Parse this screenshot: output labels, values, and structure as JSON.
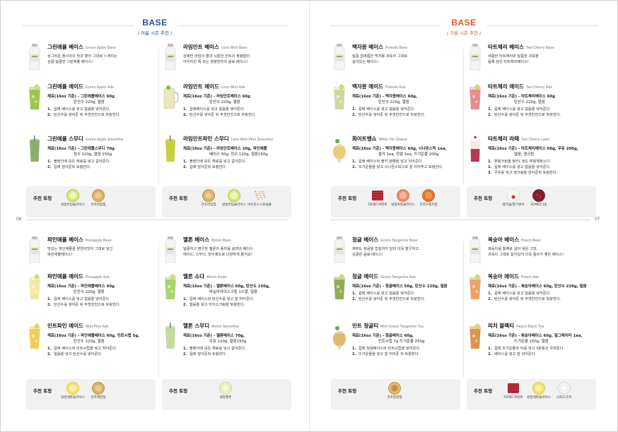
{
  "headers": {
    "left": {
      "title": "BASE",
      "subtitle": "/ 여름 시즌 추천 /"
    },
    "right": {
      "title": "BASE",
      "subtitle": "/ 가을 시즌 추천 /"
    }
  },
  "page_numbers": {
    "left": "06",
    "right": "07"
  },
  "quadrants": [
    {
      "columns": [
        {
          "items": [
            {
              "name": "그린애플 베이스",
              "en": "Green Apple Base",
              "desc": [
                "싱그러운 청사과의 맛과 향이 그대로 느껴지는",
                "상큼 달콤한 그린애플 베이스!"
              ],
              "thumb": "bottle"
            },
            {
              "name": "그린애플 에이드",
              "en": "Green Apple Ade",
              "mat": [
                "재료(16oz 기준) - 그린애플베이스 60g",
                "탄산수 220g, 얼음"
              ],
              "steps": [
                "컵에 베이스를 넣고 얼음을 넣어준다.",
                "탄산수를 넣어준 뒤 주젓한잔으로 트렁한다."
              ],
              "thumb": "ade",
              "color": "#8fc23a"
            },
            {
              "name": "그린애플 스무디",
              "en": "Green Apple Smoothie",
              "mat": [
                "재료(16oz 기준) - 그린애플스무디 70g",
                "정수 120g, 얼음 150g"
              ],
              "steps": [
                "블렌더에 모든 재료를 넣고 갈아준다.",
                "컵에 담아준뒤 토핑한다."
              ],
              "thumb": "smoothie",
              "color": "#8cae6b"
            }
          ]
        },
        {
          "items": [
            {
              "name": "라임민트 베이스",
              "en": "Lime Mint Base",
              "desc": [
                "상쾌한 라임의 향과 시원한 민트의 청량함이",
                "어우러진 톡 쏘는 청량한맛의 음료 베이스!"
              ],
              "thumb": "bottle"
            },
            {
              "name": "라임민트 에이드",
              "en": "Lime Mint Ade",
              "mat": [
                "재료(16oz 기준) - 라임민트베이스 60g",
                "탄산수 220g, 얼음"
              ],
              "steps": [
                "컵에베이스를 넣고 얼음을 넣어준다.",
                "탄산수를 넣어준 뒤 주젓한잔으로 트렁한다."
              ],
              "thumb": "mug",
              "color": "#e9e6c0"
            },
            {
              "name": "라임민트파인 스무디",
              "en": "Lime Mint Pine Smoothie",
              "mat": [
                "재료(16oz 기준) - 라임민트베이스 20g, 파인애플",
                "베이스 50g, 정수 120g, 얼음150g"
              ],
              "steps": [
                "블렌더에 모든 재료를 넣고 갈아준다.",
                "컵에 담아준뒤 토핑한다."
              ],
              "thumb": "smoothie",
              "color": "#c7cf3f"
            }
          ]
        }
      ],
      "toppings": [
        {
          "label": "추천 토핑",
          "items": [
            {
              "name": "냉동라임슬라이스",
              "icon": "lime-slice"
            },
            {
              "name": "건조라임칩",
              "icon": "dried-chip"
            }
          ]
        },
        {
          "label": "추천 토핑",
          "items": [
            {
              "name": "건조라임칩",
              "icon": "dried-chip"
            },
            {
              "name": "냉동라임슬라이스",
              "icon": "lime-slice"
            },
            {
              "name": "바디믹스스프링클",
              "icon": "sprinkles"
            }
          ]
        }
      ]
    },
    {
      "columns": [
        {
          "items": [
            {
              "name": "백자몽 베이스",
              "en": "Pomelo Base",
              "desc": [
                "달콤 쌉싸름한 백자몽 과육이 그대로",
                "살아있는 베이스!"
              ],
              "thumb": "bottle"
            },
            {
              "name": "백자몽 에이드",
              "en": "Pomelo Ade",
              "mat": [
                "재료(16oz 기준) - 백자몽베이스 60g,",
                "탄산수 220g, 얼음"
              ],
              "steps": [
                "컵에 베이스를 넣고 얼음을 넣어준다.",
                "탄산수를 넣어준 뒤 주젓한잔으로 트렁한다."
              ],
              "thumb": "ade",
              "color": "#c9d49a"
            },
            {
              "name": "화이트뱅쇼",
              "en": "White Vin Chaud",
              "mat": [
                "재료(16oz 기준) - 백자몽베이스 60g, 시나몬스틱 1ea,",
                "팔각 1ea, 정향 1ea, 뜨거운물 200g"
              ],
              "steps": [
                "컵에 베이스와 팔각,정향을 넣고 저어준다.",
                "뜨거운물을 넣고 시나몬스틱으로 잘 저어주고 토핑한다."
              ],
              "thumb": "hot",
              "color": "#e6c76a"
            }
          ]
        },
        {
          "items": [
            {
              "name": "타트체리 베이스",
              "en": "Tart Cherry Base",
              "desc": [
                "새콤한 타트체리와 달콤한 과육을",
                "듬뿍 담은 타트체리베이스!"
              ],
              "thumb": "bottle"
            },
            {
              "name": "타트체리 에이드",
              "en": "Tart Cherry Ade",
              "mat": [
                "재료(16oz 기준) - 타트체리베이스 60g",
                "탄산수 220g, 얼음"
              ],
              "steps": [
                "컵에 베이스를 넣고 얼음을 넣어준다.",
                "탄산수를 넣어준 뒤 주젓한잔으로 트렁한다."
              ],
              "thumb": "ade",
              "color": "#e0837f"
            },
            {
              "name": "타트체리 라떼",
              "en": "Tart Cherry Latte",
              "mat": [
                "재료(16oz 기준) - 타트체리베이스 60g, 우유 200g,",
                "얼음, 생크림"
              ],
              "steps": [
                "휘핑크림을 80% 정도 휘핑해놓는다.",
                "컵에 베이스를 넣고 얼음을 넣어준다.",
                "우유를 넣고 생크림을 얹어준뒤 토핑한다."
              ],
              "thumb": "latte",
              "color": "#b23a55"
            }
          ]
        }
      ],
      "toppings": [
        {
          "label": "추천 토핑",
          "items": [
            {
              "name": "FD레드커런트",
              "icon": "red-cube"
            },
            {
              "name": "냉동자몽슬라이스",
              "icon": "grapefruit"
            },
            {
              "name": "건조오렌지칩",
              "icon": "orange-chip"
            }
          ]
        },
        {
          "label": "추천 토핑",
          "items": [
            {
              "name": "생크림/딸기큐브",
              "icon": "cream"
            },
            {
              "name": "FD체리그릿",
              "icon": "cherry-grit"
            }
          ]
        }
      ]
    },
    {
      "columns": [
        {
          "items": [
            {
              "name": "파인애플 베이스",
              "en": "Pineapple Base",
              "desc": [
                "맛있는 파인애플을 본연의맛이 그대로 담긴",
                "파인애플베이스!"
              ],
              "thumb": "bottle"
            },
            {
              "name": "파인애플 에이드",
              "en": "Pineapple Ade",
              "mat": [
                "재료(16oz 기준) - 파인애플베이스 60g",
                "탄산수 220g, 얼음"
              ],
              "steps": [
                "컵에 베이스를 넣고 얼음을 넣어준다.",
                "탄산수를 넣어준 뒤 주젓한잔으로 트렁한다."
              ],
              "thumb": "ade",
              "color": "#eee79a"
            },
            {
              "name": "민트파인 에이드",
              "en": "Mint Pine Ade",
              "mat": [
                "재료(16oz 기준) - 파인애플베이스 60g, 민트시럽 5g,",
                "탄산수 220g, 얼음"
              ],
              "steps": [
                "컵에 베이스와 민트시럽을 넣고 저어준다.",
                "얼음을 넣고 탄산수를 넣어준다."
              ],
              "thumb": "ade",
              "color": "#f0c94a"
            }
          ]
        },
        {
          "items": [
            {
              "name": "멜론 베이스",
              "en": "Melon Base",
              "desc": [
                "달콤하고 향긋한 멜론의 풍미를 살려낸 베이스",
                "에이드, 스무디, 빙수제조로 다양하게 즐겨요!"
              ],
              "thumb": "bottle"
            },
            {
              "name": "멜론 소다",
              "en": "Melon Soda",
              "mat": [
                "재료(16oz 기준) - 멜론베이스 60g, 탄산수 150g,",
                "바닐라아이스크림 1스쿱, 얼음"
              ],
              "steps": [
                "컵에 베이스와 탄산수를 넣고 잘 저어준다.",
                "얼음을 넣고 아이스크림을 토핑한다."
              ],
              "thumb": "ade",
              "color": "#9ed25b"
            },
            {
              "name": "멜론 스무디",
              "en": "Melon Smoothie",
              "mat": [
                "재료(16oz 기준) - 멜론베이스 70g,",
                "우유 120g, 얼음150g"
              ],
              "steps": [
                "블렌더에 모든 재료를 넣고 갈아준다.",
                "컵에 담아준뒤 토핑한다."
              ],
              "thumb": "smoothie",
              "color": "#c6d9a0"
            }
          ]
        }
      ],
      "toppings": [
        {
          "label": "추천 토핑",
          "items": [
            {
              "name": "냉동레몬슬라이스",
              "icon": "lemon-slice"
            },
            {
              "name": "건조레몬칩",
              "icon": "dried-chip"
            }
          ]
        },
        {
          "label": "추천 토핑",
          "items": [
            {
              "name": "냉동멜론",
              "icon": "melon"
            }
          ]
        }
      ]
    },
    {
      "columns": [
        {
          "items": [
            {
              "name": "청귤 베이스",
              "en": "Green Tangerine Base",
              "desc": [
                "제주도 청귤을 껍질까지 담아 더욱 향긋하고",
                "상큼한 음료 베이스!"
              ],
              "thumb": "bottle"
            },
            {
              "name": "청귤 에이드",
              "en": "Green Tangerine Ade",
              "mat": [
                "재료(16oz 기준) - 청귤베이스 50g, 탄산수 220g, 얼음"
              ],
              "steps": [
                "컵에 베이스를 넣고 얼음을 넣어준다.",
                "탄산수를 넣어준 뒤 주젓한잔으로 트렁한다."
              ],
              "thumb": "ade",
              "color": "#8aa24a"
            },
            {
              "name": "민트 청귤티",
              "en": "Mint Green Tangerine Tea",
              "mat": [
                "재료(16oz 기준) - 청귤베이스 60g,",
                "민트시럽 7g 뜨거운물 250g"
              ],
              "steps": [
                "컵에 청귤베이스와 민트시럽을 넣어준다.",
                "뜨거운물을 넣고 잘 저어준 뒤 토핑한다."
              ],
              "thumb": "hot",
              "color": "#d9b25a"
            }
          ]
        },
        {
          "items": [
            {
              "name": "복숭아 베이스",
              "en": "Peach Base",
              "desc": [
                "복숭아를 통째로 갈아 넣은 그맛,",
                "과육이 그대로 살아있어 더욱 풍미가 좋은 베이스!"
              ],
              "thumb": "bottle"
            },
            {
              "name": "복숭아 에이드",
              "en": "Peach Ade",
              "mat": [
                "재료(16oz 기준) - 복숭아베이스 60g, 탄산수 220g, 얼음"
              ],
              "steps": [
                "컵에 베이스를 넣고 얼음을 넣어준다.",
                "탄산수를 넣어준 뒤 주젓한잔으로 트렁한다."
              ],
              "thumb": "ade",
              "color": "#e89a5a"
            },
            {
              "name": "피치 블랙티",
              "en": "Peach Black Tea",
              "mat": [
                "재료(16oz 기준) - 복숭아베이스 60g, 얼그레이티 1ea,",
                "뜨거운물 150g, 얼음"
              ],
              "steps": [
                "컵에 뜨거운물과 티를 넣고 3분동안 우려준다.",
                "베이스를 넣고 잘 섞어준다."
              ],
              "thumb": "ade",
              "color": "#d88a3a"
            }
          ]
        }
      ],
      "toppings": [
        {
          "label": "추천 토핑",
          "items": [
            {
              "name": "건조청귤칩",
              "icon": "green-chip"
            }
          ]
        },
        {
          "label": "추천 토핑",
          "items": [
            {
              "name": "FD레드커런트",
              "icon": "red-cube"
            },
            {
              "name": "냉동레몬슬라이스",
              "icon": "lemon-slice"
            },
            {
              "name": "나타드코코",
              "icon": "nata"
            }
          ]
        }
      ]
    }
  ]
}
